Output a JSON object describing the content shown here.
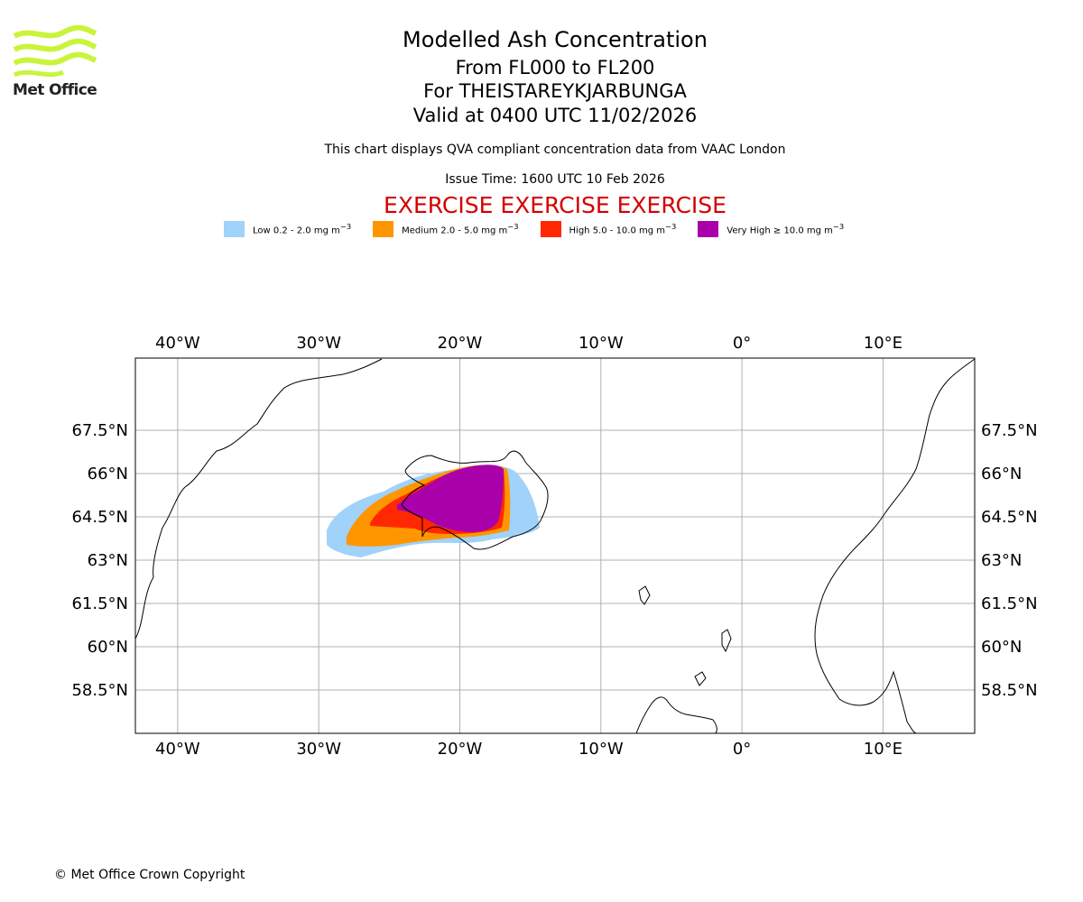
{
  "brand": {
    "name": "Met Office",
    "color": "#c8f53c"
  },
  "title": {
    "main": "Modelled Ash Concentration",
    "range": "From FL000 to FL200",
    "location": "For THEISTAREYKJARBUNGA",
    "valid": "Valid at 0400 UTC 11/02/2026"
  },
  "subtitle": {
    "compliance": "This chart displays QVA compliant concentration data from VAAC London",
    "issue_time": "Issue Time: 1600 UTC 10 Feb 2026"
  },
  "exercise_banner": "EXERCISE EXERCISE EXERCISE",
  "legend": [
    {
      "label": "Low 0.2 - 2.0 mg m",
      "color": "#a0d2fa"
    },
    {
      "label": "Medium 2.0 - 5.0 mg m",
      "color": "#ff9600"
    },
    {
      "label": "High 5.0 - 10.0 mg m",
      "color": "#ff2800"
    },
    {
      "label": "Very High ≥ 10.0 mg m",
      "color": "#aa00aa"
    }
  ],
  "legend_unit_exponent": "−3",
  "map": {
    "extent": {
      "lon_min": -43,
      "lon_max": 16.5,
      "lat_min": 57,
      "lat_max": 70
    },
    "lon_ticks": [
      {
        "value": -40,
        "label": "40°W"
      },
      {
        "value": -30,
        "label": "30°W"
      },
      {
        "value": -20,
        "label": "20°W"
      },
      {
        "value": -10,
        "label": "10°W"
      },
      {
        "value": 0,
        "label": "0°"
      },
      {
        "value": 10,
        "label": "10°E"
      }
    ],
    "lat_ticks": [
      {
        "value": 67.5,
        "label": "67.5°N"
      },
      {
        "value": 66,
        "label": "66°N"
      },
      {
        "value": 64.5,
        "label": "64.5°N"
      },
      {
        "value": 63,
        "label": "63°N"
      },
      {
        "value": 61.5,
        "label": "61.5°N"
      },
      {
        "value": 60,
        "label": "60°N"
      },
      {
        "value": 58.5,
        "label": "58.5°N"
      }
    ]
  },
  "footer": {
    "copyright": "© Met Office Crown Copyright"
  }
}
